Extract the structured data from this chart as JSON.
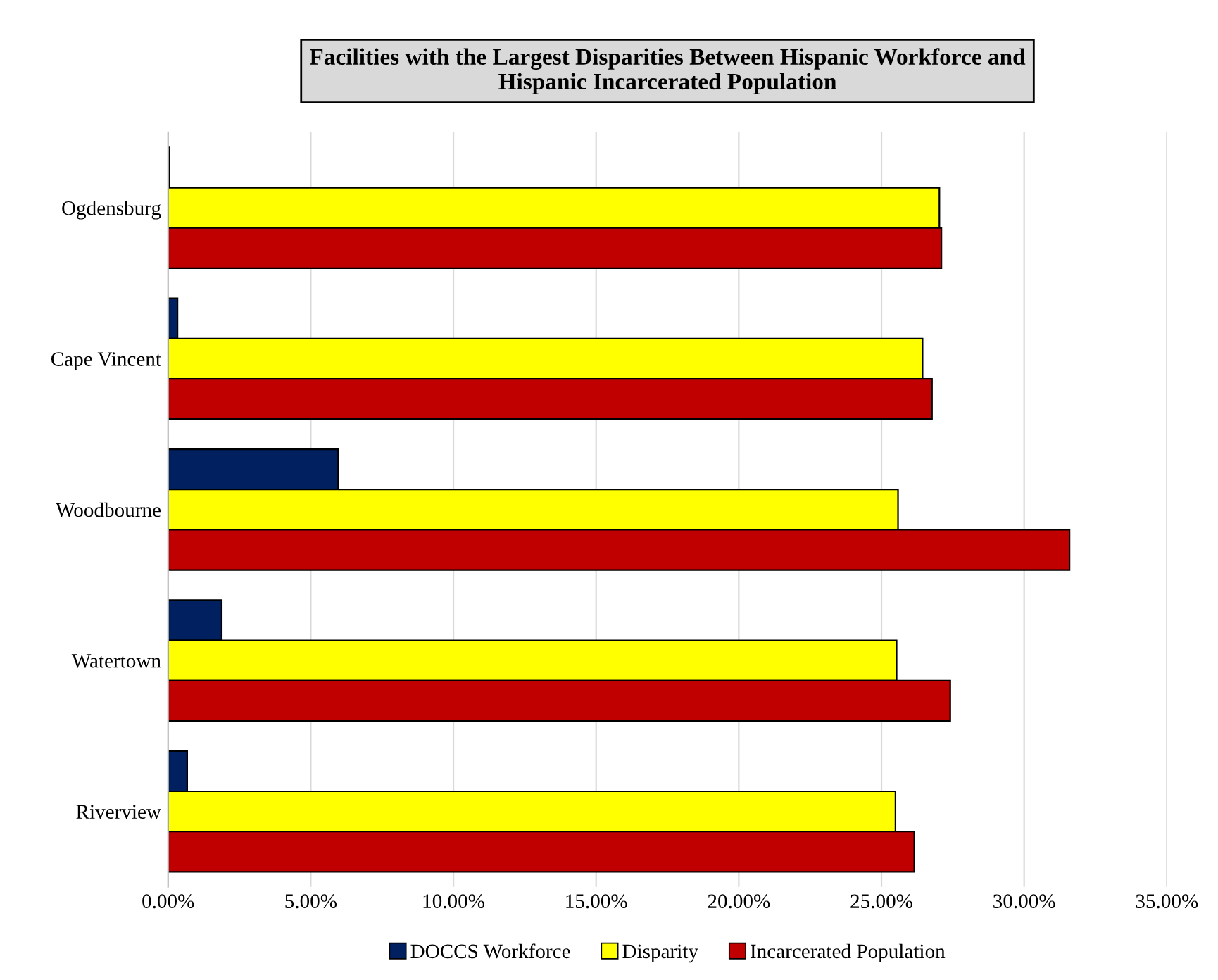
{
  "chart_data": {
    "type": "bar",
    "orientation": "horizontal",
    "title": "Facilities with the Largest Disparities Between Hispanic Workforce and\nHispanic Incarcerated Population",
    "categories": [
      "Ogdensburg",
      "Cape Vincent",
      "Woodbourne",
      "Watertown",
      "Riverview"
    ],
    "series": [
      {
        "name": "DOCCS Workforce",
        "color": "#002060",
        "values": [
          0.05,
          0.33,
          5.96,
          1.88,
          0.67
        ]
      },
      {
        "name": "Disparity",
        "color": "#ffff00",
        "values": [
          27.03,
          26.44,
          25.58,
          25.53,
          25.49
        ]
      },
      {
        "name": "Incarcerated Population",
        "color": "#c00000",
        "values": [
          27.1,
          26.77,
          31.59,
          27.41,
          26.15
        ]
      }
    ],
    "xlim": [
      0,
      35
    ],
    "xticks": [
      {
        "value": 0,
        "label": "0.00%"
      },
      {
        "value": 5,
        "label": "5.00%"
      },
      {
        "value": 10,
        "label": "10.00%"
      },
      {
        "value": 15,
        "label": "15.00%"
      },
      {
        "value": 20,
        "label": "20.00%"
      },
      {
        "value": 25,
        "label": "25.00%"
      },
      {
        "value": 30,
        "label": "30.00%"
      },
      {
        "value": 35,
        "label": "35.00%"
      }
    ],
    "grid": "x",
    "legend": "bottom"
  }
}
